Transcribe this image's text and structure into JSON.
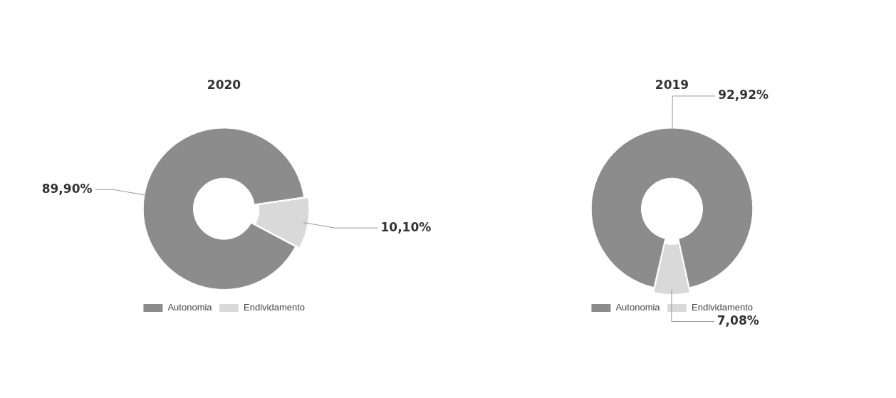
{
  "chart_data": [
    {
      "type": "donut",
      "title": "2020",
      "categories": [
        "Autonomia",
        "Endividamento"
      ],
      "values": [
        89.9,
        10.1
      ],
      "colors": [
        "#8c8c8c",
        "#d9d9d9"
      ],
      "value_labels": [
        "89,90%",
        "10,10%"
      ],
      "legend": "bottom"
    },
    {
      "type": "donut",
      "title": "2019",
      "categories": [
        "Autonomia",
        "Endividamento"
      ],
      "values": [
        92.92,
        7.08
      ],
      "colors": [
        "#8c8c8c",
        "#d9d9d9"
      ],
      "value_labels": [
        "92,92%",
        "7,08%"
      ],
      "legend": "bottom"
    }
  ]
}
